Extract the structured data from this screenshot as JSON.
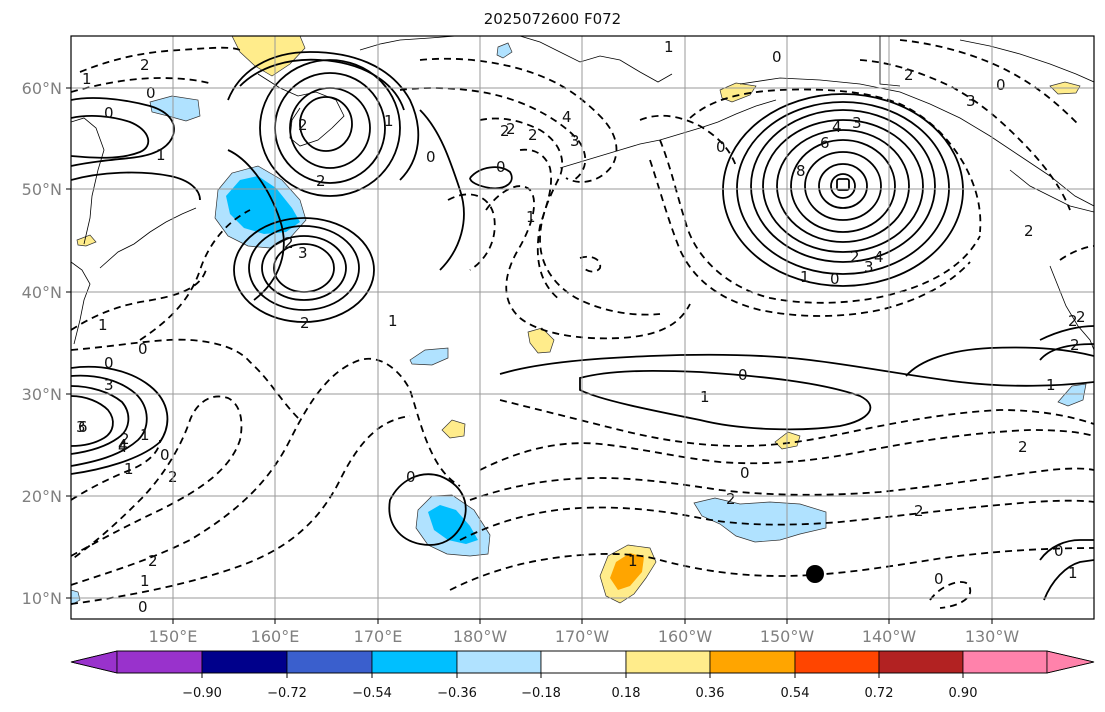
{
  "title": "2025072600 F072",
  "lat_labels": [
    "60°N",
    "50°N",
    "40°N",
    "30°N",
    "20°N",
    "10°N"
  ],
  "lon_labels": [
    "150°E",
    "160°E",
    "170°E",
    "180°W",
    "170°W",
    "160°W",
    "150°W",
    "140°W",
    "130°W"
  ],
  "colorbar": {
    "tick_labels": [
      "−0.90",
      "−0.72",
      "−0.54",
      "−0.36",
      "−0.18",
      "0.18",
      "0.36",
      "0.54",
      "0.72",
      "0.90"
    ],
    "colors": [
      "#9932CC",
      "#00008B",
      "#3A5FCD",
      "#00BFFF",
      "#B0E2FF",
      "#FFFFFF",
      "#FFEC8B",
      "#FFA500",
      "#FF4500",
      "#B22222",
      "#FF82AB"
    ]
  },
  "contour_labels": [
    "0",
    "2",
    "1",
    "1",
    "2",
    "1",
    "0",
    "2",
    "3",
    "2",
    "0",
    "2",
    "2",
    "0",
    "1",
    "2",
    "1",
    "0",
    "0",
    "0",
    "1",
    "2",
    "3",
    "4",
    "0",
    "2",
    "3",
    "1",
    "0",
    "2",
    "3",
    "4",
    "8",
    "6",
    "4",
    "3",
    "1",
    "0",
    "2",
    "2",
    "3",
    "2",
    "2",
    "1",
    "3",
    "4",
    "0",
    "1",
    "2",
    "1",
    "0",
    "6",
    "4",
    "1",
    "0",
    "2",
    "2",
    "1",
    "0",
    "2",
    "0",
    "2",
    "0",
    "1",
    "0",
    "2",
    "1"
  ],
  "marker": "storm-center-dot",
  "gridlines": true
}
